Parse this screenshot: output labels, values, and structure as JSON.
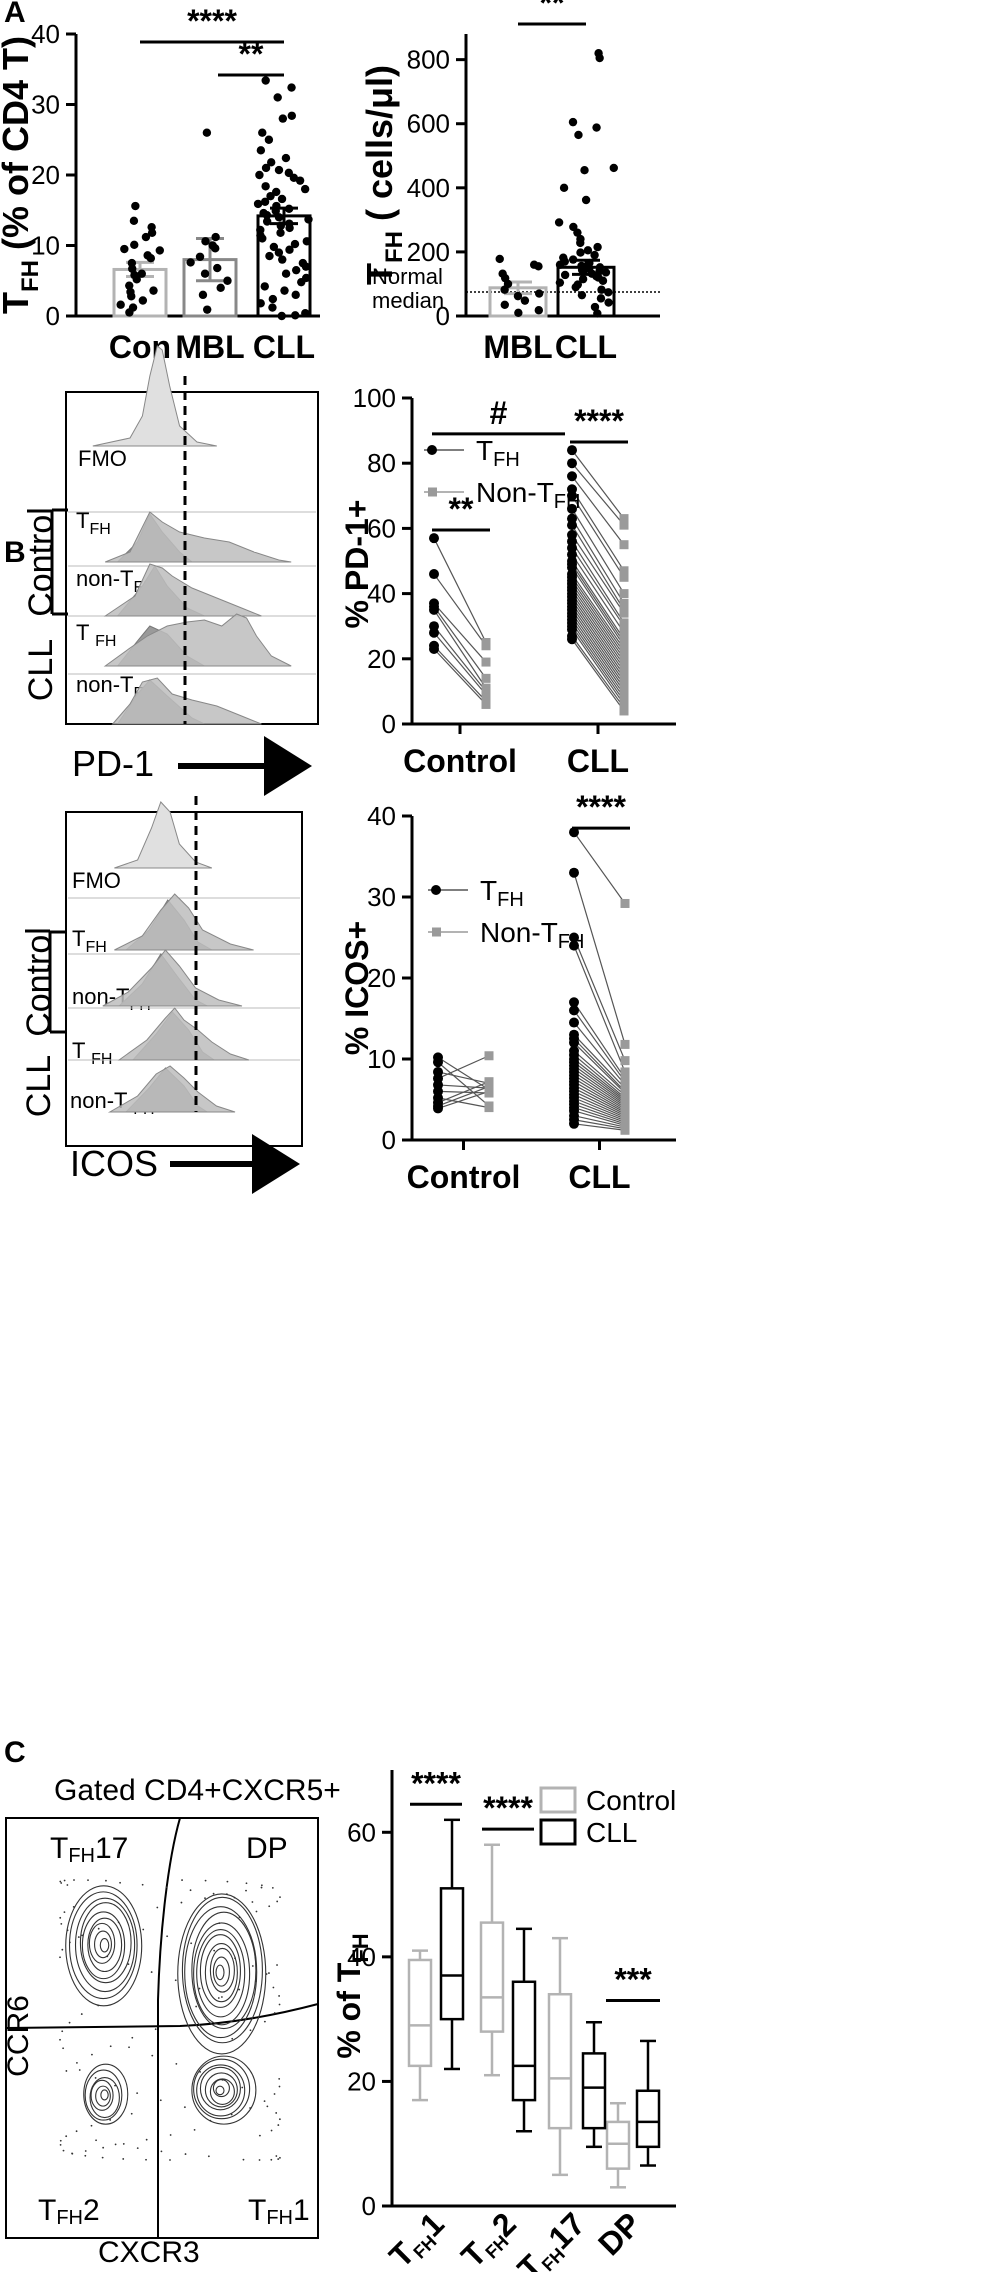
{
  "panels": {
    "A": "A",
    "B": "B",
    "C": "C"
  },
  "colors": {
    "control_grey": "#b3b3b3",
    "mbl_grey": "#888888",
    "cll_black": "#000000",
    "hist_light": "#e0e0e0",
    "hist_mid": "#bdbdbd",
    "hist_dark": "#9a9a9a"
  },
  "chart_data": [
    {
      "id": "A-left",
      "type": "bar",
      "ylabel": "TFH (% of CD4 T)",
      "ylabel_main": "T",
      "ylabel_sub": "FH",
      "ylabel_rest": " (% of CD4 T)",
      "ylim": [
        0,
        40
      ],
      "yticks": [
        0,
        10,
        20,
        30,
        40
      ],
      "categories": [
        "Con",
        "MBL",
        "CLL"
      ],
      "values": [
        6.6,
        8.0,
        14.2
      ],
      "errors": [
        1.0,
        3.0,
        1.1
      ],
      "points": {
        "Con": [
          15.6,
          13.5,
          12.6,
          11.8,
          11.2,
          10.1,
          9.5,
          9.3,
          8.6,
          8.2,
          7.5,
          6.7,
          6.0,
          5.8,
          5.2,
          4.3,
          3.6,
          3.4,
          2.8,
          2.2,
          1.6,
          1.2,
          0.5
        ],
        "MBL": [
          26.0,
          11.2,
          10.6,
          10.0,
          9.6,
          8.4,
          7.6,
          6.8,
          6.0,
          5.0,
          4.0,
          3.0,
          0.9
        ],
        "CLL": [
          33.4,
          32.4,
          31.0,
          28.4,
          28.0,
          26.0,
          25.0,
          23.5,
          22.4,
          21.8,
          21.0,
          20.7,
          20.3,
          20.0,
          19.6,
          19.2,
          18.4,
          18.0,
          17.6,
          17.0,
          16.6,
          16.2,
          15.9,
          15.6,
          15.2,
          14.9,
          14.6,
          14.3,
          14.0,
          13.7,
          13.4,
          13.1,
          12.8,
          12.5,
          12.2,
          11.8,
          11.4,
          11.0,
          10.6,
          10.2,
          9.8,
          9.4,
          9.0,
          8.5,
          8.0,
          7.5,
          7.0,
          6.5,
          6.0,
          5.4,
          4.8,
          4.2,
          3.6,
          3.0,
          2.4,
          1.8,
          1.2,
          0.4,
          0.1,
          0.0
        ]
      },
      "significance": [
        {
          "from": "Con",
          "to": "CLL",
          "label": "****"
        },
        {
          "from": "MBL",
          "to": "CLL",
          "label": "**"
        }
      ]
    },
    {
      "id": "A-right",
      "type": "bar",
      "ylabel": "TFH ( cells/μl)",
      "ylabel_main": "T",
      "ylabel_sub": "FH",
      "ylabel_rest": " ( cells/μl)",
      "ylim": [
        0,
        880
      ],
      "yticks": [
        0,
        200,
        400,
        600,
        800
      ],
      "categories": [
        "MBL",
        "CLL"
      ],
      "values": [
        88,
        152
      ],
      "errors": [
        18,
        22
      ],
      "reference_line": {
        "value": 75,
        "label_line1": "Normal",
        "label_line2": "median"
      },
      "points": {
        "MBL": [
          178,
          160,
          155,
          132,
          118,
          100,
          82,
          70,
          62,
          48,
          35,
          18,
          10
        ],
        "CLL": [
          820,
          805,
          605,
          588,
          565,
          462,
          455,
          400,
          362,
          292,
          278,
          260,
          240,
          228,
          215,
          205,
          198,
          190,
          182,
          176,
          170,
          165,
          160,
          156,
          152,
          148,
          144,
          140,
          136,
          132,
          128,
          124,
          120,
          115,
          110,
          104,
          98,
          90,
          82,
          74,
          65,
          55,
          42,
          28,
          8
        ]
      },
      "significance": [
        {
          "from": "MBL",
          "to": "CLL",
          "label": "**"
        }
      ]
    },
    {
      "id": "B-PD1",
      "type": "scatter",
      "ylabel": "% PD-1+",
      "ylim": [
        0,
        100
      ],
      "yticks": [
        0,
        20,
        40,
        60,
        80,
        100
      ],
      "categories": [
        "Control",
        "CLL"
      ],
      "legend": [
        "TFH",
        "Non-TFH"
      ],
      "series": [
        {
          "group": "Control",
          "TFH": [
            57,
            46,
            37,
            36,
            35,
            30,
            28,
            24,
            23
          ],
          "NonTFH": [
            25,
            24,
            19,
            14,
            11,
            10,
            9,
            7,
            6
          ]
        },
        {
          "group": "CLL",
          "TFH": [
            84,
            80,
            76,
            72,
            70,
            66,
            63,
            61,
            58,
            56,
            54,
            52,
            50,
            49,
            48,
            46,
            45,
            44,
            43,
            42,
            41,
            40,
            39,
            38,
            37,
            36,
            35,
            34,
            33,
            32,
            31,
            30,
            29,
            27,
            26
          ],
          "NonTFH": [
            63,
            61,
            55,
            47,
            45,
            40,
            37,
            35,
            34,
            31,
            30,
            28,
            26,
            25,
            24,
            23,
            22,
            21,
            20,
            19,
            18,
            17,
            16,
            15,
            14,
            13,
            12,
            11,
            10,
            9,
            8,
            7,
            6,
            5,
            4
          ]
        }
      ],
      "significance": [
        {
          "group": "Control",
          "label": "**"
        },
        {
          "group": "CLL",
          "label": "****"
        },
        {
          "from": "Control",
          "to": "CLL",
          "label": "#"
        }
      ]
    },
    {
      "id": "B-ICOS",
      "type": "scatter",
      "ylabel": "% ICOS+",
      "ylim": [
        0,
        40
      ],
      "yticks": [
        0,
        10,
        20,
        30,
        40
      ],
      "categories": [
        "Control",
        "CLL"
      ],
      "legend": [
        "TFH",
        "Non-TFH"
      ],
      "series": [
        {
          "group": "Control",
          "TFH": [
            10.2,
            9.6,
            8.4,
            7.6,
            6.8,
            6.0,
            5.2,
            4.6,
            4.2,
            3.9
          ],
          "NonTFH": [
            6.2,
            4.2,
            7.0,
            10.4,
            6.4,
            5.8,
            4.0,
            7.2,
            6.6,
            6.0
          ]
        },
        {
          "group": "CLL",
          "TFH": [
            38,
            33,
            25,
            24,
            17,
            16,
            14.5,
            13,
            12.5,
            12,
            11,
            10.5,
            10,
            9.6,
            9.2,
            8.8,
            8.4,
            8,
            7.6,
            7.2,
            6.8,
            6.4,
            6,
            5.6,
            5.2,
            4.8,
            4.4,
            4,
            3.6,
            3,
            2.5,
            2
          ],
          "NonTFH": [
            29.2,
            11.8,
            9.8,
            8.4,
            7.6,
            7.2,
            6.8,
            6.4,
            6,
            5.8,
            5.5,
            5.2,
            5,
            4.8,
            4.6,
            4.4,
            4.2,
            4,
            3.8,
            3.6,
            3.4,
            3.2,
            3,
            2.8,
            2.6,
            2.4,
            2.2,
            2,
            1.8,
            1.6,
            1.4,
            1.2
          ]
        }
      ],
      "significance": [
        {
          "group": "CLL",
          "label": "****"
        }
      ]
    },
    {
      "id": "C-box",
      "type": "box",
      "ylabel": "% of TFH",
      "ylabel_main": "% of T",
      "ylabel_sub": "FH",
      "ylim": [
        0,
        70
      ],
      "yticks": [
        0,
        20,
        40,
        60
      ],
      "categories": [
        "TFH1",
        "TFH2",
        "TFH17",
        "DP"
      ],
      "category_main": [
        "T",
        "T",
        "T",
        "DP"
      ],
      "category_sub": [
        "FH",
        "FH",
        "FH",
        ""
      ],
      "category_suffix": [
        "1",
        "2",
        "17",
        ""
      ],
      "legend": [
        "Control",
        "CLL"
      ],
      "series": [
        {
          "name": "Control",
          "boxes": [
            {
              "min": 17,
              "q1": 22.5,
              "median": 29,
              "q3": 39.5,
              "max": 41
            },
            {
              "min": 21,
              "q1": 28,
              "median": 33.5,
              "q3": 45.5,
              "max": 58
            },
            {
              "min": 5,
              "q1": 12.5,
              "median": 20.5,
              "q3": 34,
              "max": 43
            },
            {
              "min": 3,
              "q1": 6,
              "median": 10,
              "q3": 13.5,
              "max": 16.5
            }
          ]
        },
        {
          "name": "CLL",
          "boxes": [
            {
              "min": 22,
              "q1": 30,
              "median": 37,
              "q3": 51,
              "max": 62
            },
            {
              "min": 12,
              "q1": 17,
              "median": 22.5,
              "q3": 36,
              "max": 44.5
            },
            {
              "min": 9.5,
              "q1": 12.5,
              "median": 19,
              "q3": 24.5,
              "max": 29.5
            },
            {
              "min": 6.5,
              "q1": 9.5,
              "median": 13.5,
              "q3": 18.5,
              "max": 26.5
            }
          ]
        }
      ],
      "significance": [
        {
          "category": "TFH1",
          "label": "****"
        },
        {
          "category": "TFH2",
          "label": "****"
        },
        {
          "category": "DP",
          "label": "***"
        }
      ]
    }
  ],
  "histograms": {
    "pd1": {
      "axis_label": "PD-1",
      "rows": [
        {
          "main": "FMO",
          "sub": ""
        },
        {
          "main": "T",
          "sub": "FH"
        },
        {
          "main": "non-T",
          "sub": "FH"
        },
        {
          "main": "T ",
          "sub": "FH"
        },
        {
          "main": "non-T",
          "sub": "FH"
        }
      ],
      "groups": [
        "Control",
        "CLL"
      ]
    },
    "icos": {
      "axis_label": "ICOS",
      "rows": [
        {
          "main": "FMO",
          "sub": ""
        },
        {
          "main": "T",
          "sub": "FH"
        },
        {
          "main": "non-T",
          "sub": "FH"
        },
        {
          "main": "T ",
          "sub": "FH"
        },
        {
          "main": "non-T ",
          "sub": "FH"
        }
      ],
      "groups": [
        "Control",
        "CLL"
      ]
    }
  },
  "flow_plot": {
    "title": "Gated CD4+CXCR5+",
    "x_axis": "CXCR3",
    "y_axis": "CCR6",
    "quadrants": [
      {
        "main": "T",
        "sub": "FH",
        "suffix": "17"
      },
      {
        "main": "DP",
        "sub": "",
        "suffix": ""
      },
      {
        "main": "T",
        "sub": "FH",
        "suffix": "2"
      },
      {
        "main": "T",
        "sub": "FH",
        "suffix": "1"
      }
    ]
  }
}
